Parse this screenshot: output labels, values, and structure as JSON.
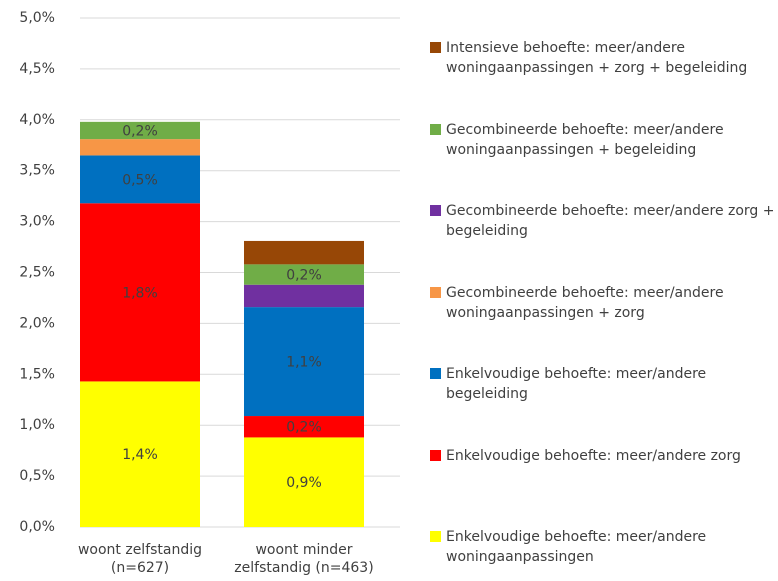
{
  "chart_data": {
    "type": "stacked_bar",
    "categories": [
      "woont zelfstandig (n=627)",
      "woont minder zelfstandig (n=463)"
    ],
    "series": [
      {
        "name": "Enkelvoudige behoefte: meer/andere woningaanpassingen",
        "color": "#ffff00",
        "values": [
          1.43,
          0.88
        ],
        "value_labels": [
          "1,4%",
          "0,9%"
        ]
      },
      {
        "name": "Enkelvoudige behoefte: meer/andere zorg",
        "color": "#ff0000",
        "values": [
          1.75,
          0.21
        ],
        "value_labels": [
          "1,8%",
          "0,2%"
        ]
      },
      {
        "name": "Enkelvoudige behoefte: meer/andere begeleiding",
        "color": "#0070c0",
        "values": [
          0.47,
          1.07
        ],
        "value_labels": [
          "0,5%",
          "1,1%"
        ]
      },
      {
        "name": "Gecombineerde behoefte: meer/andere woningaanpassingen + zorg",
        "color": "#f79646",
        "values": [
          0.16,
          0
        ],
        "value_labels": [
          null,
          null
        ]
      },
      {
        "name": "Gecombineerde behoefte: meer/andere zorg + begeleiding",
        "color": "#7030a0",
        "values": [
          0,
          0.22
        ],
        "value_labels": [
          null,
          null
        ]
      },
      {
        "name": "Gecombineerde behoefte: meer/andere woningaanpassingen + begeleiding",
        "color": "#70ad47",
        "values": [
          0.17,
          0.2
        ],
        "value_labels": [
          "0,2%",
          "0,2%"
        ]
      },
      {
        "name": "Intensieve behoefte: meer/andere woningaanpassingen + zorg + begeleiding",
        "color": "#974706",
        "values": [
          0,
          0.23
        ],
        "value_labels": [
          null,
          null
        ]
      }
    ],
    "ylim": [
      0,
      5
    ],
    "yticks": [
      {
        "value": 0,
        "label": "0,0%"
      },
      {
        "value": 0.5,
        "label": "0,5%"
      },
      {
        "value": 1,
        "label": "1,0%"
      },
      {
        "value": 1.5,
        "label": "1,5%"
      },
      {
        "value": 2,
        "label": "2,0%"
      },
      {
        "value": 2.5,
        "label": "2,5%"
      },
      {
        "value": 3,
        "label": "3,0%"
      },
      {
        "value": 3.5,
        "label": "3,5%"
      },
      {
        "value": 4,
        "label": "4,0%"
      },
      {
        "value": 4.5,
        "label": "4,5%"
      },
      {
        "value": 5,
        "label": "5,0%"
      }
    ],
    "grid": true,
    "legend": "right"
  }
}
